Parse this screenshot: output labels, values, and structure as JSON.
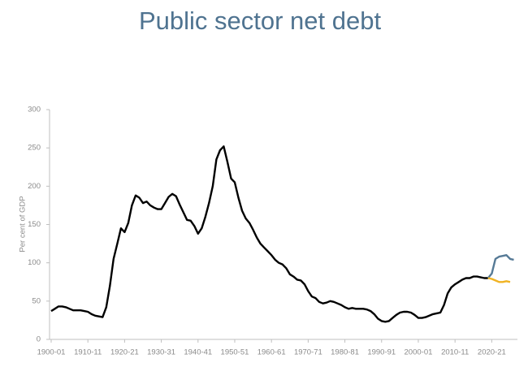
{
  "chart_data": {
    "type": "line",
    "title": "Public sector net debt",
    "y_label": "Per cent of GDP",
    "xlim": [
      1900,
      2027
    ],
    "xticks": [
      {
        "value": 1900,
        "label": "1900-01"
      },
      {
        "value": 1910,
        "label": "1910-11"
      },
      {
        "value": 1920,
        "label": "1920-21"
      },
      {
        "value": 1930,
        "label": "1930-31"
      },
      {
        "value": 1940,
        "label": "1940-41"
      },
      {
        "value": 1950,
        "label": "1950-51"
      },
      {
        "value": 1960,
        "label": "1960-61"
      },
      {
        "value": 1970,
        "label": "1970-71"
      },
      {
        "value": 1980,
        "label": "1980-81"
      },
      {
        "value": 1990,
        "label": "1990-91"
      },
      {
        "value": 2000,
        "label": "2000-01"
      },
      {
        "value": 2010,
        "label": "2010-11"
      },
      {
        "value": 2020,
        "label": "2020-21"
      }
    ],
    "ylim": [
      0,
      300
    ],
    "yticks": [
      0,
      50,
      100,
      150,
      200,
      250,
      300
    ],
    "grid": false,
    "series": [
      {
        "color": "#000000",
        "x": [
          1900,
          1901,
          1902,
          1903,
          1904,
          1905,
          1906,
          1907,
          1908,
          1909,
          1910,
          1911,
          1912,
          1913,
          1914,
          1915,
          1916,
          1917,
          1918,
          1919,
          1920,
          1921,
          1922,
          1923,
          1924,
          1925,
          1926,
          1927,
          1928,
          1929,
          1930,
          1931,
          1932,
          1933,
          1934,
          1935,
          1936,
          1937,
          1938,
          1939,
          1940,
          1941,
          1942,
          1943,
          1944,
          1945,
          1946,
          1947,
          1948,
          1949,
          1950,
          1951,
          1952,
          1953,
          1954,
          1955,
          1956,
          1957,
          1958,
          1959,
          1960,
          1961,
          1962,
          1963,
          1964,
          1965,
          1966,
          1967,
          1968,
          1969,
          1970,
          1971,
          1972,
          1973,
          1974,
          1975,
          1976,
          1977,
          1978,
          1979,
          1980,
          1981,
          1982,
          1983,
          1984,
          1985,
          1986,
          1987,
          1988,
          1989,
          1990,
          1991,
          1992,
          1993,
          1994,
          1995,
          1996,
          1997,
          1998,
          1999,
          2000,
          2001,
          2002,
          2003,
          2004,
          2005,
          2006,
          2007,
          2008,
          2009,
          2010,
          2011,
          2012,
          2013,
          2014,
          2015,
          2016,
          2017,
          2018,
          2019
        ],
        "values": [
          37,
          40,
          43,
          43,
          42,
          40,
          38,
          38,
          38,
          37,
          36,
          33,
          31,
          30,
          29,
          42,
          70,
          105,
          125,
          145,
          140,
          152,
          175,
          188,
          185,
          178,
          180,
          175,
          172,
          170,
          170,
          178,
          186,
          190,
          187,
          176,
          166,
          156,
          155,
          148,
          138,
          145,
          160,
          178,
          200,
          235,
          247,
          252,
          232,
          210,
          205,
          185,
          168,
          158,
          152,
          143,
          133,
          125,
          120,
          115,
          110,
          104,
          100,
          98,
          93,
          85,
          82,
          78,
          77,
          72,
          63,
          56,
          54,
          49,
          47,
          48,
          50,
          49,
          47,
          45,
          42,
          40,
          41,
          40,
          40,
          40,
          39,
          37,
          33,
          27,
          24,
          23,
          24,
          28,
          32,
          35,
          36,
          36,
          35,
          32,
          28,
          28,
          29,
          31,
          33,
          34,
          35,
          45,
          60,
          68,
          72,
          75,
          78,
          80,
          80,
          82,
          82,
          81,
          80,
          80
        ]
      },
      {
        "color": "#567a96",
        "x": [
          2019,
          2020,
          2021,
          2022,
          2023,
          2024,
          2025,
          2026
        ],
        "values": [
          80,
          86,
          105,
          108,
          109,
          110,
          105,
          104
        ]
      },
      {
        "color": "#f0b323",
        "x": [
          2019,
          2020,
          2021,
          2022,
          2023,
          2024,
          2025
        ],
        "values": [
          80,
          79,
          77,
          75,
          75,
          76,
          75
        ]
      }
    ]
  }
}
